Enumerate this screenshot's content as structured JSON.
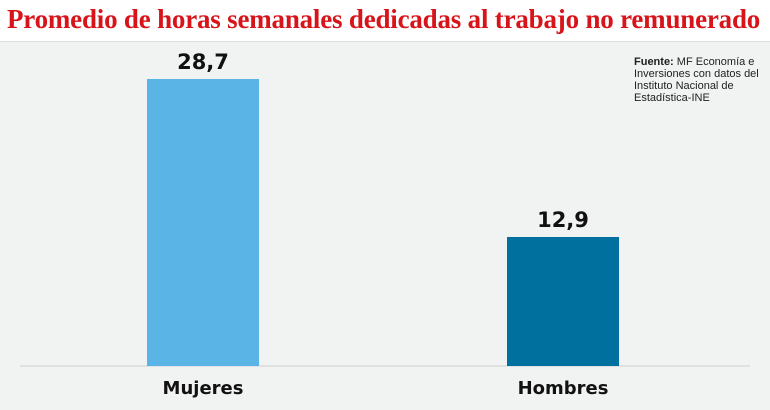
{
  "chart_data": {
    "type": "bar",
    "title": "Promedio de horas semanales dedicadas al trabajo no remunerado",
    "categories": [
      "Mujeres",
      "Hombres"
    ],
    "values": [
      28.7,
      12.9
    ],
    "value_labels": [
      "28,7",
      "12,9"
    ],
    "colors": [
      "#5ab4e5",
      "#00709f"
    ],
    "ylim": [
      0,
      30
    ],
    "grid": false,
    "xlabel": "",
    "ylabel": ""
  },
  "source": {
    "label": "Fuente:",
    "text": " MF Economía e Inversiones con datos del Instituto Nacional de Estadística-INE"
  },
  "colors": {
    "title": "#d8141b",
    "background": "#f1f2f2",
    "axis": "#cfcfcf"
  }
}
